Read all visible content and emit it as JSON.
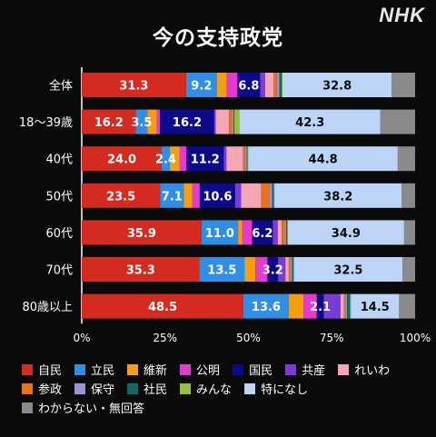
{
  "header": {
    "title": "今の支持政党",
    "brand": "NHK"
  },
  "chart_data": {
    "type": "bar",
    "stacked": true,
    "orientation": "horizontal",
    "title": "今の支持政党",
    "categories": [
      "全体",
      "18～39歳",
      "40代",
      "50代",
      "60代",
      "70代",
      "80歳以上"
    ],
    "xlim": [
      0,
      100
    ],
    "xticks": [
      "0%",
      "25%",
      "50%",
      "75%",
      "100%"
    ],
    "grid": false,
    "legend_position": "bottom",
    "series": [
      {
        "name": "自民",
        "color": "#d42a20",
        "values": [
          31.3,
          16.2,
          24.0,
          23.5,
          35.9,
          35.3,
          48.5
        ]
      },
      {
        "name": "立民",
        "color": "#2f8fe6",
        "values": [
          9.2,
          3.5,
          2.4,
          7.1,
          11.0,
          13.5,
          13.6
        ]
      },
      {
        "name": "維新",
        "color": "#f59f10",
        "values": [
          3.0,
          2.8,
          3.0,
          2.6,
          1.2,
          3.3,
          4.4
        ]
      },
      {
        "name": "公明",
        "color": "#e43ad0",
        "values": [
          3.2,
          1.0,
          2.0,
          2.2,
          3.0,
          3.6,
          4.0
        ]
      },
      {
        "name": "国民",
        "color": "#0c0a8c",
        "values": [
          6.8,
          16.2,
          11.2,
          10.6,
          6.2,
          3.2,
          2.1
        ]
      },
      {
        "name": "共産",
        "color": "#7a3bd6",
        "values": [
          1.5,
          0.5,
          0.8,
          1.8,
          1.5,
          2.2,
          5.0
        ]
      },
      {
        "name": "れいわ",
        "color": "#f4a6b6",
        "values": [
          2.5,
          4.0,
          5.0,
          6.0,
          1.2,
          1.0,
          1.0
        ]
      },
      {
        "name": "参政",
        "color": "#e8711a",
        "values": [
          1.0,
          0.8,
          0.6,
          2.5,
          0.8,
          0.5,
          0.5
        ]
      },
      {
        "name": "保守",
        "color": "#9b92d8",
        "values": [
          0.8,
          0.5,
          0.5,
          0.8,
          0.5,
          0.5,
          0.5
        ]
      },
      {
        "name": "社民",
        "color": "#0b6d66",
        "values": [
          0.7,
          0.3,
          0.2,
          0.5,
          0.3,
          0.4,
          0.9
        ]
      },
      {
        "name": "みんな",
        "color": "#96c235",
        "values": [
          0.2,
          1.5,
          0.3,
          0.2,
          0.2,
          0.2,
          0.2
        ]
      },
      {
        "name": "特になし",
        "color": "#bcd5f7",
        "values": [
          32.8,
          42.3,
          44.8,
          38.2,
          34.9,
          32.5,
          14.5
        ]
      },
      {
        "name": "わからない・無回答",
        "color": "#8a8a8a",
        "values": [
          7.0,
          10.4,
          5.2,
          4.0,
          3.3,
          3.8,
          4.8
        ]
      }
    ],
    "data_labels": [
      {
        "category": 0,
        "series": 0,
        "text": "31.3"
      },
      {
        "category": 0,
        "series": 1,
        "text": "9.2"
      },
      {
        "category": 0,
        "series": 4,
        "text": "6.8"
      },
      {
        "category": 0,
        "series": 11,
        "text": "32.8"
      },
      {
        "category": 1,
        "series": 0,
        "text": "16.2"
      },
      {
        "category": 1,
        "series": 1,
        "text": "3.5"
      },
      {
        "category": 1,
        "series": 4,
        "text": "16.2"
      },
      {
        "category": 1,
        "series": 11,
        "text": "42.3"
      },
      {
        "category": 2,
        "series": 0,
        "text": "24.0"
      },
      {
        "category": 2,
        "series": 1,
        "text": "2.4"
      },
      {
        "category": 2,
        "series": 4,
        "text": "11.2"
      },
      {
        "category": 2,
        "series": 11,
        "text": "44.8"
      },
      {
        "category": 3,
        "series": 0,
        "text": "23.5"
      },
      {
        "category": 3,
        "series": 1,
        "text": "7.1"
      },
      {
        "category": 3,
        "series": 4,
        "text": "10.6"
      },
      {
        "category": 3,
        "series": 11,
        "text": "38.2"
      },
      {
        "category": 4,
        "series": 0,
        "text": "35.9"
      },
      {
        "category": 4,
        "series": 1,
        "text": "11.0"
      },
      {
        "category": 4,
        "series": 4,
        "text": "6.2"
      },
      {
        "category": 4,
        "series": 11,
        "text": "34.9"
      },
      {
        "category": 5,
        "series": 0,
        "text": "35.3"
      },
      {
        "category": 5,
        "series": 1,
        "text": "13.5"
      },
      {
        "category": 5,
        "series": 4,
        "text": "3.2"
      },
      {
        "category": 5,
        "series": 11,
        "text": "32.5"
      },
      {
        "category": 6,
        "series": 0,
        "text": "48.5"
      },
      {
        "category": 6,
        "series": 1,
        "text": "13.6"
      },
      {
        "category": 6,
        "series": 4,
        "text": "2.1"
      },
      {
        "category": 6,
        "series": 11,
        "text": "14.5"
      }
    ]
  }
}
